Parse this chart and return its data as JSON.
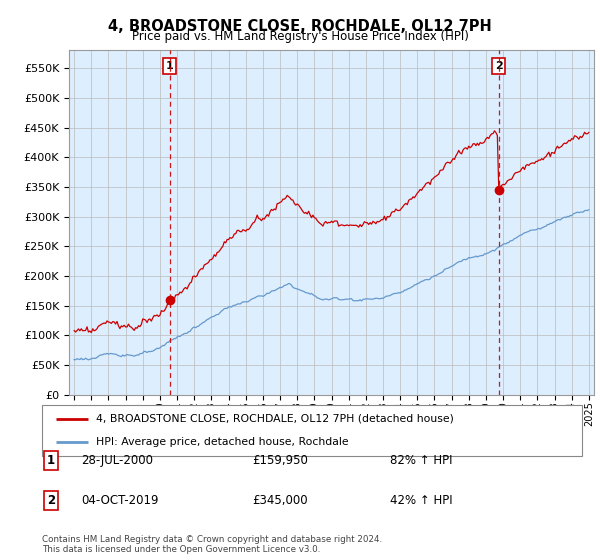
{
  "title": "4, BROADSTONE CLOSE, ROCHDALE, OL12 7PH",
  "subtitle": "Price paid vs. HM Land Registry's House Price Index (HPI)",
  "legend_label_red": "4, BROADSTONE CLOSE, ROCHDALE, OL12 7PH (detached house)",
  "legend_label_blue": "HPI: Average price, detached house, Rochdale",
  "sale1_date": "28-JUL-2000",
  "sale1_price": 159950,
  "sale1_hpi": "82% ↑ HPI",
  "sale2_date": "04-OCT-2019",
  "sale2_price": 345000,
  "sale2_hpi": "42% ↑ HPI",
  "footnote": "Contains HM Land Registry data © Crown copyright and database right 2024.\nThis data is licensed under the Open Government Licence v3.0.",
  "red_color": "#cc0000",
  "blue_color": "#6699cc",
  "bg_fill_color": "#ddeeff",
  "grid_color": "#bbbbbb",
  "ylim": [
    0,
    580000
  ],
  "yticks": [
    0,
    50000,
    100000,
    150000,
    200000,
    250000,
    300000,
    350000,
    400000,
    450000,
    500000,
    550000
  ],
  "sale1_x": 2000.57,
  "sale1_y": 159950,
  "sale2_x": 2019.75,
  "sale2_y": 345000,
  "xlim_left": 1994.7,
  "xlim_right": 2025.3
}
